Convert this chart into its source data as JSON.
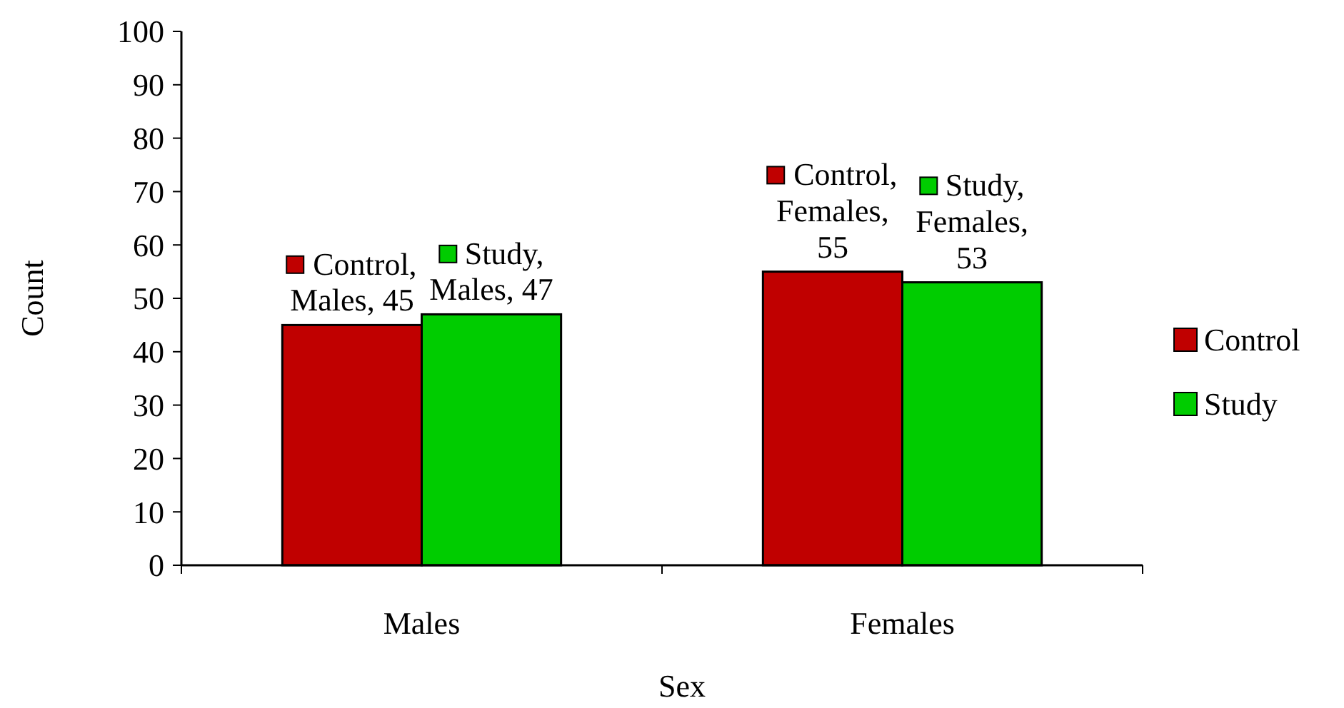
{
  "chart_data": {
    "type": "bar",
    "xlabel": "Sex",
    "ylabel": "Count",
    "categories": [
      "Males",
      "Females"
    ],
    "series": [
      {
        "name": "Control",
        "color": "#c00000",
        "values": [
          45,
          55
        ],
        "value_labels": [
          "Control, Males, 45",
          "Control, Females, 55"
        ]
      },
      {
        "name": "Study",
        "color": "#00cc00",
        "values": [
          47,
          53
        ],
        "value_labels": [
          "Study, Males, 47",
          "Study, Females, 53"
        ]
      }
    ],
    "ylim": [
      0,
      100
    ],
    "yticks": [
      0,
      10,
      20,
      30,
      40,
      50,
      60,
      70,
      80,
      90,
      100
    ],
    "grid": false,
    "legend": "right"
  }
}
